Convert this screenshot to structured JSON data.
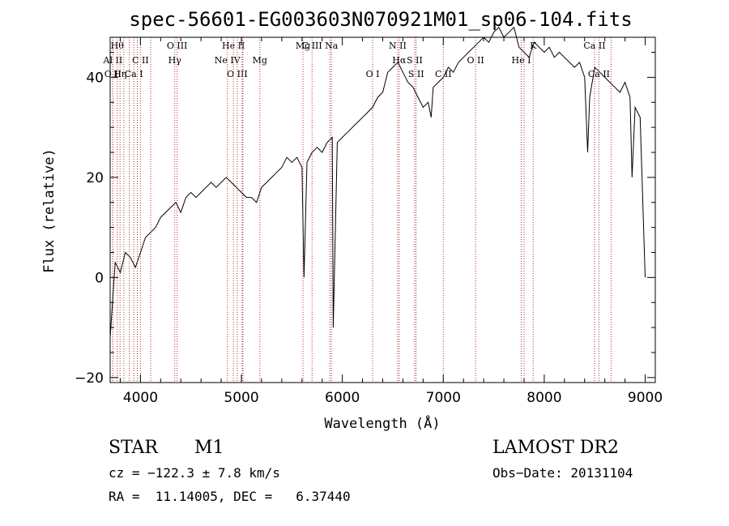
{
  "chart_data": {
    "type": "line",
    "title": "spec-56601-EG003603N070921M01_sp06-104.fits",
    "xlabel": "Wavelength (Å)",
    "ylabel": "Flux (relative)",
    "xlim": [
      3700,
      9100
    ],
    "ylim": [
      -21,
      48
    ],
    "x_ticks": [
      4000,
      5000,
      6000,
      7000,
      8000,
      9000
    ],
    "y_ticks": [
      -20,
      0,
      20,
      40
    ],
    "grid": false,
    "series": [
      {
        "x": [
          3700,
          3750,
          3800,
          3850,
          3900,
          3950,
          4000,
          4050,
          4100,
          4150,
          4200,
          4250,
          4300,
          4350,
          4400,
          4450,
          4500,
          4550,
          4600,
          4650,
          4700,
          4750,
          4800,
          4850,
          4900,
          4950,
          5000,
          5050,
          5100,
          5150,
          5200,
          5250,
          5300,
          5350,
          5400,
          5450,
          5500,
          5550,
          5600,
          5620,
          5650,
          5700,
          5750,
          5800,
          5850,
          5900,
          5910,
          5950,
          6000,
          6050,
          6100,
          6150,
          6200,
          6250,
          6300,
          6350,
          6400,
          6450,
          6500,
          6550,
          6600,
          6650,
          6700,
          6750,
          6800,
          6850,
          6880,
          6900,
          6950,
          7000,
          7050,
          7100,
          7150,
          7200,
          7250,
          7300,
          7350,
          7400,
          7450,
          7500,
          7550,
          7600,
          7650,
          7700,
          7750,
          7800,
          7850,
          7900,
          7950,
          8000,
          8050,
          8100,
          8150,
          8200,
          8250,
          8300,
          8350,
          8400,
          8430,
          8450,
          8500,
          8550,
          8600,
          8650,
          8700,
          8750,
          8800,
          8850,
          8870,
          8900,
          8950,
          9000
        ],
        "y": [
          -12,
          3,
          1,
          5,
          4,
          2,
          5,
          8,
          9,
          10,
          12,
          13,
          14,
          15,
          13,
          16,
          17,
          16,
          17,
          18,
          19,
          18,
          19,
          20,
          19,
          18,
          17,
          16,
          16,
          15,
          18,
          19,
          20,
          21,
          22,
          24,
          23,
          24,
          22,
          0,
          23,
          25,
          26,
          25,
          27,
          28,
          -10,
          27,
          28,
          29,
          30,
          31,
          32,
          33,
          34,
          36,
          37,
          41,
          42,
          43,
          41,
          39,
          38,
          36,
          34,
          35,
          32,
          38,
          39,
          40,
          42,
          41,
          43,
          44,
          45,
          46,
          47,
          48,
          47,
          49,
          50,
          48,
          49,
          50,
          46,
          45,
          44,
          47,
          46,
          45,
          46,
          44,
          45,
          44,
          43,
          42,
          43,
          40,
          25,
          36,
          42,
          41,
          40,
          39,
          38,
          37,
          39,
          36,
          20,
          34,
          32,
          0
        ]
      }
    ],
    "line_markers": [
      {
        "x": 3727,
        "label": "Al II",
        "row": 2
      },
      {
        "x": 3727,
        "label": "O II",
        "row": 3
      },
      {
        "x": 3770,
        "label": "Hθ",
        "row": 1
      },
      {
        "x": 3798,
        "label": "Hη",
        "row": 3
      },
      {
        "x": 3835,
        "label": "",
        "row": 0
      },
      {
        "x": 3889,
        "label": "",
        "row": 0
      },
      {
        "x": 3934,
        "label": "Ca I",
        "row": 3
      },
      {
        "x": 3969,
        "label": "",
        "row": 0
      },
      {
        "x": 4000,
        "label": "C II",
        "row": 2
      },
      {
        "x": 4102,
        "label": "",
        "row": 0
      },
      {
        "x": 4340,
        "label": "Hγ",
        "row": 2
      },
      {
        "x": 4363,
        "label": "O III",
        "row": 1
      },
      {
        "x": 4861,
        "label": "Ne IV",
        "row": 2
      },
      {
        "x": 4959,
        "label": "O III",
        "row": 3
      },
      {
        "x": 4921,
        "label": "He II",
        "row": 1
      },
      {
        "x": 5007,
        "label": "",
        "row": 0
      },
      {
        "x": 5015,
        "label": "",
        "row": 0
      },
      {
        "x": 5183,
        "label": "Mg",
        "row": 2
      },
      {
        "x": 5610,
        "label": "Mg",
        "row": 1
      },
      {
        "x": 5700,
        "label": "C III",
        "row": 1
      },
      {
        "x": 5876,
        "label": "",
        "row": 0
      },
      {
        "x": 5892,
        "label": "Na",
        "row": 1
      },
      {
        "x": 6300,
        "label": "O I",
        "row": 3
      },
      {
        "x": 6548,
        "label": "N II",
        "row": 1
      },
      {
        "x": 6563,
        "label": "Hα",
        "row": 2
      },
      {
        "x": 6717,
        "label": "S II",
        "row": 2
      },
      {
        "x": 6731,
        "label": "S II",
        "row": 3
      },
      {
        "x": 7000,
        "label": "C II",
        "row": 3
      },
      {
        "x": 7320,
        "label": "O II",
        "row": 2
      },
      {
        "x": 7772,
        "label": "He I",
        "row": 2
      },
      {
        "x": 7800,
        "label": "",
        "row": 0
      },
      {
        "x": 7890,
        "label": "K",
        "row": 1
      },
      {
        "x": 8498,
        "label": "Ca II",
        "row": 1
      },
      {
        "x": 8542,
        "label": "Ca II",
        "row": 3
      },
      {
        "x": 8662,
        "label": "",
        "row": 0
      }
    ]
  },
  "info": {
    "class": "STAR",
    "subclass": "M1",
    "survey": "LAMOST DR2",
    "cz": "cz = −122.3 ± 7.8 km/s",
    "obsdate": "Obs−Date: 20131104",
    "radec": "RA =  11.14005, DEC =   6.37440"
  }
}
